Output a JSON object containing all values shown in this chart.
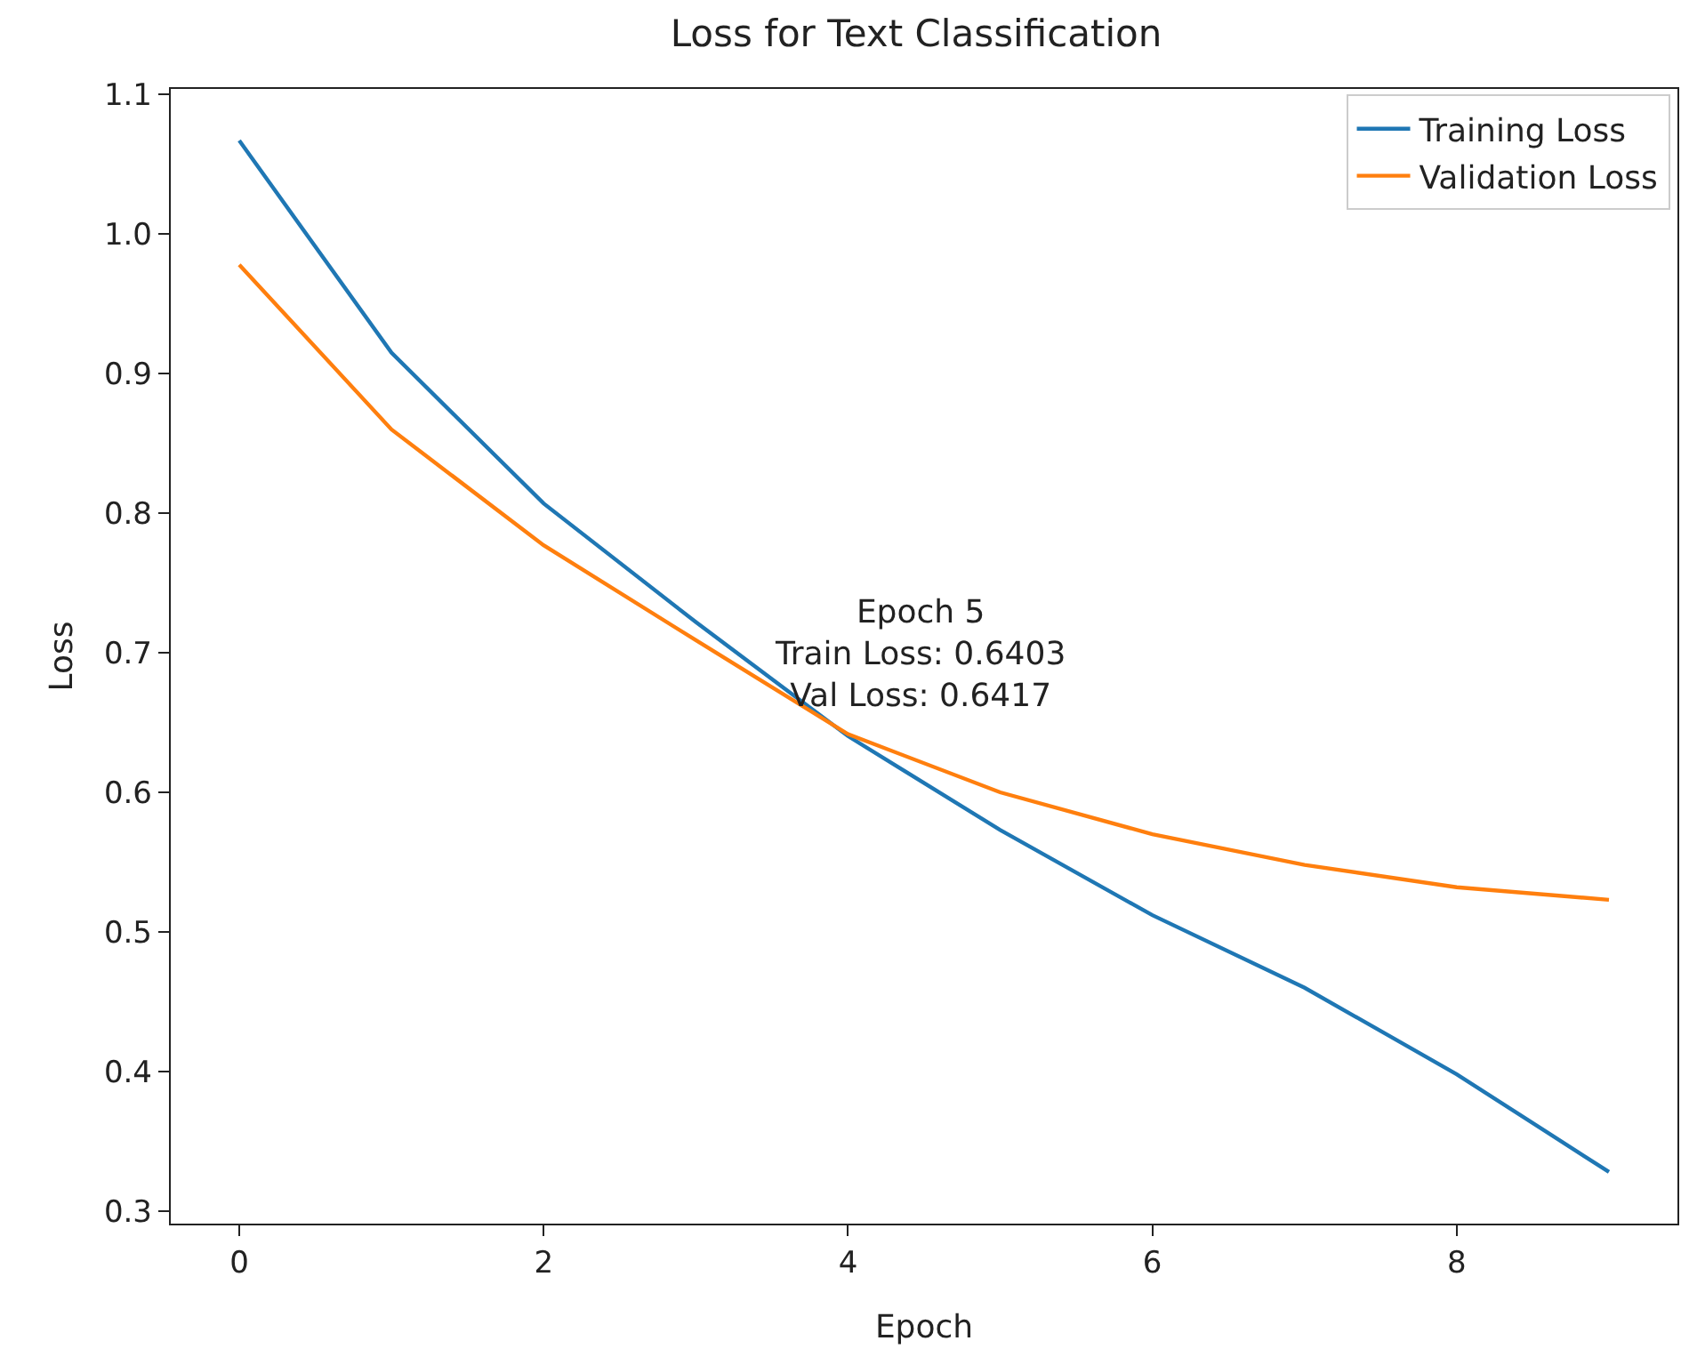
{
  "chart_data": {
    "type": "line",
    "title": "Loss for Text Classification",
    "xlabel": "Epoch",
    "ylabel": "Loss",
    "x": [
      0,
      1,
      2,
      3,
      4,
      5,
      6,
      7,
      8,
      9
    ],
    "series": [
      {
        "name": "Training Loss",
        "color": "#1f77b4",
        "values": [
          1.067,
          0.915,
          0.807,
          0.722,
          0.6403,
          0.573,
          0.512,
          0.46,
          0.398,
          0.328
        ]
      },
      {
        "name": "Validation Loss",
        "color": "#ff7f0e",
        "values": [
          0.978,
          0.86,
          0.777,
          0.709,
          0.6417,
          0.6,
          0.57,
          0.548,
          0.532,
          0.523
        ]
      }
    ],
    "xlim": [
      -0.45,
      9.45
    ],
    "xticks": [
      0,
      2,
      4,
      6,
      8
    ],
    "ylim": [
      0.291,
      1.104
    ],
    "yticks": [
      0.3,
      0.4,
      0.5,
      0.6,
      0.7,
      0.8,
      0.9,
      {
        "value": 1.0,
        "label": "1.0"
      },
      1.1
    ],
    "grid": false,
    "legend": "top right",
    "marker": "none",
    "line_style": "solid",
    "annotations": [
      {
        "text": "Epoch 5\nTrain Loss: 0.6403\nVal Loss: 0.6417",
        "x": 4,
        "y": 0.6403
      }
    ]
  }
}
